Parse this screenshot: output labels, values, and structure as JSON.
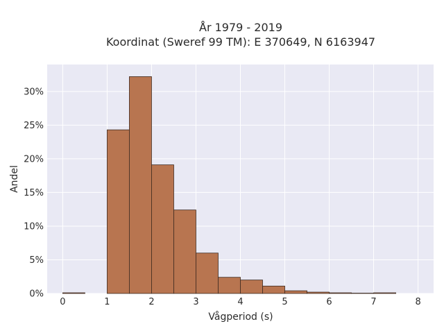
{
  "chart_data": {
    "type": "bar",
    "title_lines": [
      "År 1979 - 2019",
      "Koordinat (Sweref 99 TM): E 370649, N 6163947"
    ],
    "xlabel": "Vågperiod (s)",
    "ylabel": "Andel",
    "bin_width": 0.5,
    "bins": [
      {
        "x0": 0.0,
        "value": 0.1
      },
      {
        "x0": 0.5,
        "value": 0.0
      },
      {
        "x0": 1.0,
        "value": 24.3
      },
      {
        "x0": 1.5,
        "value": 32.2
      },
      {
        "x0": 2.0,
        "value": 19.1
      },
      {
        "x0": 2.5,
        "value": 12.4
      },
      {
        "x0": 3.0,
        "value": 6.0
      },
      {
        "x0": 3.5,
        "value": 2.4
      },
      {
        "x0": 4.0,
        "value": 2.0
      },
      {
        "x0": 4.5,
        "value": 1.1
      },
      {
        "x0": 5.0,
        "value": 0.4
      },
      {
        "x0": 5.5,
        "value": 0.2
      },
      {
        "x0": 6.0,
        "value": 0.1
      },
      {
        "x0": 6.5,
        "value": 0.05
      },
      {
        "x0": 7.0,
        "value": 0.1
      }
    ],
    "xlim": [
      -0.35,
      8.35
    ],
    "ylim": [
      0,
      34
    ],
    "xticks": [
      0,
      1,
      2,
      3,
      4,
      5,
      6,
      7,
      8
    ],
    "xtick_labels": [
      "0",
      "1",
      "2",
      "3",
      "4",
      "5",
      "6",
      "7",
      "8"
    ],
    "yticks": [
      0,
      5,
      10,
      15,
      20,
      25,
      30
    ],
    "ytick_labels": [
      "0%",
      "5%",
      "10%",
      "15%",
      "20%",
      "25%",
      "30%"
    ],
    "grid": true,
    "colors": {
      "bar_fill": "#b87550",
      "bar_stroke": "#3d2a20",
      "plot_bg": "#e9e9f4",
      "grid": "#ffffff"
    }
  }
}
